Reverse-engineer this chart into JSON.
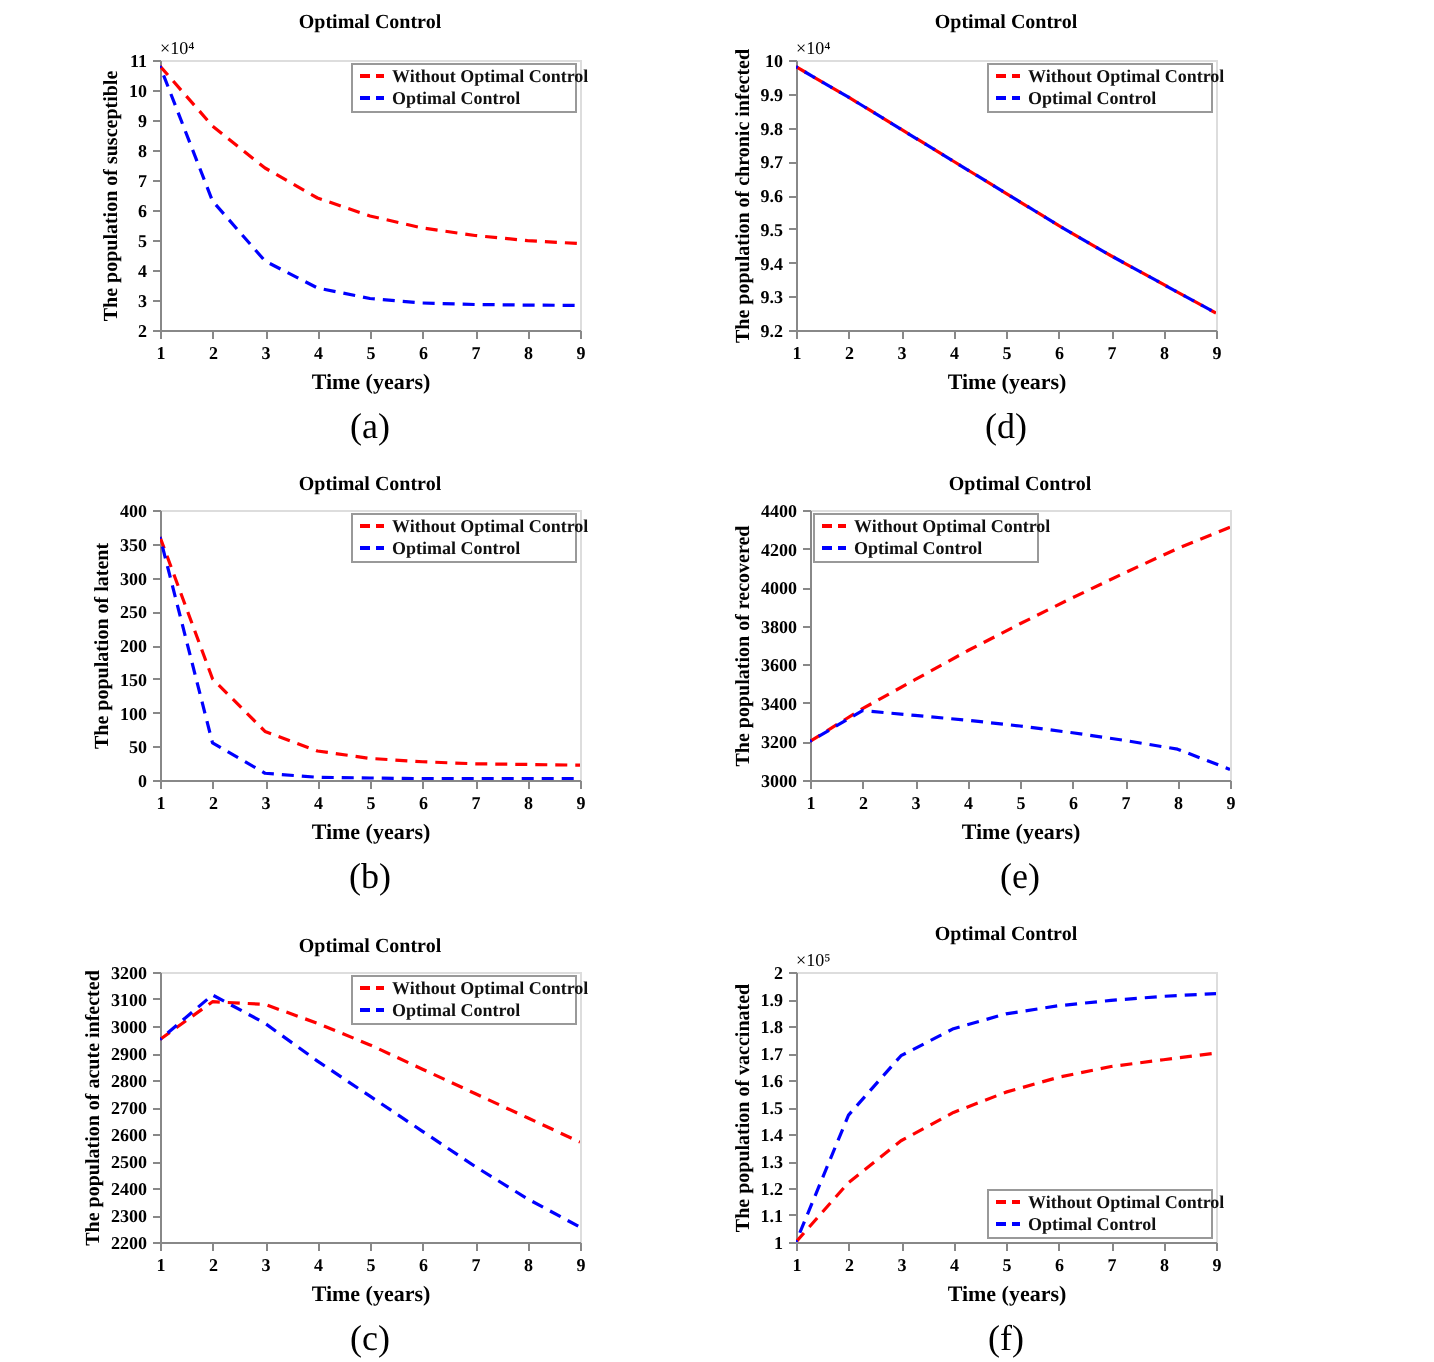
{
  "chart_data": [
    {
      "type": "line",
      "title": "Optimal Control",
      "xlabel": "Time (years)",
      "ylabel": "The population of susceptible",
      "annotations": [
        "×10⁴",
        "(a)"
      ],
      "x": [
        1,
        2,
        3,
        4,
        5,
        6,
        7,
        8,
        9
      ],
      "xlim": [
        1,
        9
      ],
      "xticks": [
        1,
        2,
        3,
        4,
        5,
        6,
        7,
        8,
        9
      ],
      "ylim": [
        2,
        11
      ],
      "yticks": [
        2,
        3,
        4,
        5,
        6,
        7,
        8,
        9,
        10,
        11
      ],
      "grid": false,
      "legend": "top right",
      "line_style": "dashed",
      "series": [
        {
          "name": "Without Optimal Control",
          "color": "#ff0000",
          "values": [
            10.8,
            8.8,
            7.4,
            6.4,
            5.8,
            5.4,
            5.15,
            4.98,
            4.88
          ]
        },
        {
          "name": "Optimal Control",
          "color": "#0000ff",
          "values": [
            10.8,
            6.3,
            4.3,
            3.4,
            3.05,
            2.9,
            2.85,
            2.83,
            2.82
          ]
        }
      ]
    },
    {
      "type": "line",
      "title": "Optimal Control",
      "xlabel": "Time (years)",
      "ylabel": "The population of chronic infected",
      "annotations": [
        "×10⁴",
        "(d)"
      ],
      "x": [
        1,
        2,
        3,
        4,
        5,
        6,
        7,
        8,
        9
      ],
      "xlim": [
        1,
        9
      ],
      "xticks": [
        1,
        2,
        3,
        4,
        5,
        6,
        7,
        8,
        9
      ],
      "ylim": [
        9.2,
        10
      ],
      "yticks": [
        9.2,
        9.3,
        9.4,
        9.5,
        9.6,
        9.7,
        9.8,
        9.9,
        10
      ],
      "grid": false,
      "legend": "top right",
      "line_style": "dashed",
      "series": [
        {
          "name": "Without Optimal Control",
          "color": "#ff0000",
          "values": [
            9.98,
            9.89,
            9.795,
            9.7,
            9.605,
            9.51,
            9.42,
            9.335,
            9.25
          ]
        },
        {
          "name": "Optimal Control",
          "color": "#0000ff",
          "values": [
            9.98,
            9.89,
            9.795,
            9.7,
            9.605,
            9.51,
            9.42,
            9.335,
            9.25
          ]
        }
      ]
    },
    {
      "type": "line",
      "title": "Optimal Control",
      "xlabel": "Time (years)",
      "ylabel": "The population of latent",
      "annotations": [
        "(b)"
      ],
      "x": [
        1,
        2,
        3,
        4,
        5,
        6,
        7,
        8,
        9
      ],
      "xlim": [
        1,
        9
      ],
      "xticks": [
        1,
        2,
        3,
        4,
        5,
        6,
        7,
        8,
        9
      ],
      "ylim": [
        0,
        400
      ],
      "yticks": [
        0,
        50,
        100,
        150,
        200,
        250,
        300,
        350,
        400
      ],
      "grid": false,
      "legend": "top right",
      "line_style": "dashed",
      "series": [
        {
          "name": "Without Optimal Control",
          "color": "#ff0000",
          "values": [
            360,
            150,
            72,
            43,
            32,
            27,
            24,
            23,
            22
          ]
        },
        {
          "name": "Optimal Control",
          "color": "#0000ff",
          "values": [
            360,
            55,
            10,
            4,
            3,
            2,
            2,
            2,
            2
          ]
        }
      ]
    },
    {
      "type": "line",
      "title": "Optimal Control",
      "xlabel": "Time (years)",
      "ylabel": "The population of recovered",
      "annotations": [
        "(e)"
      ],
      "x": [
        1,
        2,
        3,
        4,
        5,
        6,
        7,
        8,
        9
      ],
      "xlim": [
        1,
        9
      ],
      "xticks": [
        1,
        2,
        3,
        4,
        5,
        6,
        7,
        8,
        9
      ],
      "ylim": [
        3000,
        4400
      ],
      "yticks": [
        3000,
        3200,
        3400,
        3600,
        3800,
        4000,
        4200,
        4400
      ],
      "grid": false,
      "legend": "top left",
      "line_style": "dashed",
      "series": [
        {
          "name": "Without Optimal Control",
          "color": "#ff0000",
          "values": [
            3200,
            3370,
            3520,
            3670,
            3810,
            3945,
            4075,
            4200,
            4310
          ]
        },
        {
          "name": "Optimal Control",
          "color": "#0000ff",
          "values": [
            3200,
            3360,
            3335,
            3310,
            3280,
            3245,
            3205,
            3160,
            3055
          ]
        }
      ]
    },
    {
      "type": "line",
      "title": "Optimal Control",
      "xlabel": "Time (years)",
      "ylabel": "The population of acute infected",
      "annotations": [
        "(c)"
      ],
      "x": [
        1,
        2,
        3,
        4,
        5,
        6,
        7,
        8,
        9
      ],
      "xlim": [
        1,
        9
      ],
      "xticks": [
        1,
        2,
        3,
        4,
        5,
        6,
        7,
        8,
        9
      ],
      "ylim": [
        2200,
        3200
      ],
      "yticks": [
        2200,
        2300,
        2400,
        2500,
        2600,
        2700,
        2800,
        2900,
        3000,
        3100,
        3200
      ],
      "grid": false,
      "legend": "top right",
      "line_style": "dashed",
      "series": [
        {
          "name": "Without Optimal Control",
          "color": "#ff0000",
          "values": [
            2950,
            3090,
            3080,
            3010,
            2930,
            2840,
            2750,
            2660,
            2570
          ]
        },
        {
          "name": "Optimal Control",
          "color": "#0000ff",
          "values": [
            2950,
            3115,
            3010,
            2870,
            2740,
            2610,
            2480,
            2360,
            2255
          ]
        }
      ]
    },
    {
      "type": "line",
      "title": "Optimal Control",
      "xlabel": "Time (years)",
      "ylabel": "The population of vaccinated",
      "annotations": [
        "×10⁵",
        "(f)"
      ],
      "x": [
        1,
        2,
        3,
        4,
        5,
        6,
        7,
        8,
        9
      ],
      "xlim": [
        1,
        9
      ],
      "xticks": [
        1,
        2,
        3,
        4,
        5,
        6,
        7,
        8,
        9
      ],
      "ylim": [
        1,
        2
      ],
      "yticks": [
        1,
        1.1,
        1.2,
        1.3,
        1.4,
        1.5,
        1.6,
        1.7,
        1.8,
        1.9,
        2
      ],
      "grid": false,
      "legend": "bottom right",
      "line_style": "dashed",
      "series": [
        {
          "name": "Without Optimal Control",
          "color": "#ff0000",
          "values": [
            1.0,
            1.22,
            1.375,
            1.48,
            1.555,
            1.61,
            1.65,
            1.675,
            1.7
          ]
        },
        {
          "name": "Optimal Control",
          "color": "#0000ff",
          "values": [
            1.0,
            1.47,
            1.69,
            1.79,
            1.845,
            1.875,
            1.895,
            1.91,
            1.92
          ]
        }
      ]
    }
  ]
}
